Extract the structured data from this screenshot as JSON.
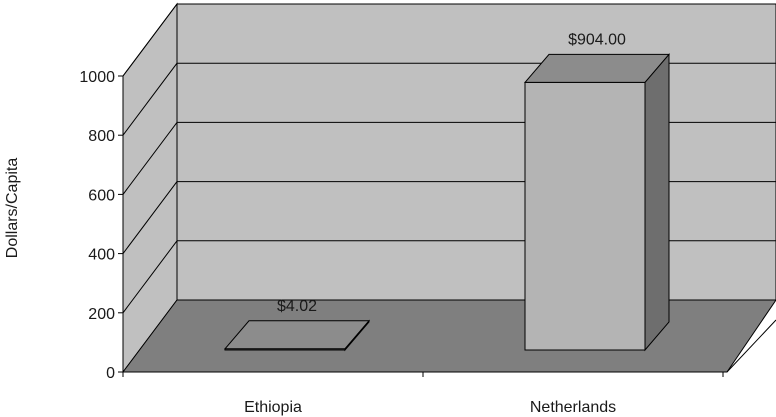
{
  "chart_data": {
    "type": "bar",
    "three_d": true,
    "categories": [
      "Ethiopia",
      "Netherlands"
    ],
    "values": [
      4.02,
      904.0
    ],
    "data_labels": [
      "$4.02",
      "$904.00"
    ],
    "ylabel": "Dollars/Capita",
    "xlabel": "",
    "title": "",
    "ylim": [
      0,
      1000
    ],
    "yticks": [
      0,
      200,
      400,
      600,
      800,
      1000
    ],
    "grid": true,
    "legend": "none",
    "colors": {
      "wall": "#c0c0c0",
      "floor": "#7f7f7f",
      "bar_front": "#b4b4b4",
      "bar_top": "#8c8c8c",
      "bar_side": "#6e6e6e",
      "lines": "#000000"
    }
  }
}
